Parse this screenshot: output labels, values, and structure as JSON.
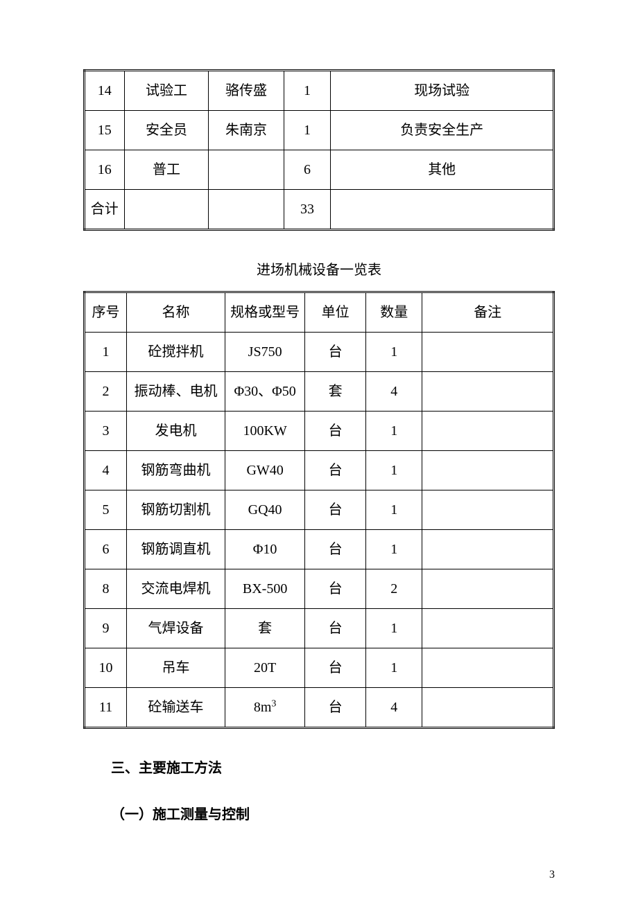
{
  "table1": {
    "columns_css": [
      "t1-c0",
      "t1-c1",
      "t1-c2",
      "t1-c3",
      "t1-c4"
    ],
    "rows": [
      [
        "14",
        "试验工",
        "骆传盛",
        "1",
        "现场试验"
      ],
      [
        "15",
        "安全员",
        "朱南京",
        "1",
        "负责安全生产"
      ],
      [
        "16",
        "普工",
        "",
        "6",
        "其他"
      ],
      [
        "合计",
        "",
        "",
        "33",
        ""
      ]
    ]
  },
  "table2": {
    "caption": "进场机械设备一览表",
    "columns_css": [
      "t2-c0",
      "t2-c1",
      "t2-c2",
      "t2-c3",
      "t2-c4",
      "t2-c5"
    ],
    "headers": [
      "序号",
      "名称",
      "规格或型号",
      "单位",
      "数量",
      "备注"
    ],
    "rows": [
      [
        "1",
        "砼搅拌机",
        "JS750",
        "台",
        "1",
        ""
      ],
      [
        "2",
        "振动棒、电机",
        "Φ30、Φ50",
        "套",
        "4",
        ""
      ],
      [
        "3",
        "发电机",
        "100KW",
        "台",
        "1",
        ""
      ],
      [
        "4",
        "钢筋弯曲机",
        "GW40",
        "台",
        "1",
        ""
      ],
      [
        "5",
        "钢筋切割机",
        "GQ40",
        "台",
        "1",
        ""
      ],
      [
        "6",
        "钢筋调直机",
        "Φ10",
        "台",
        "1",
        ""
      ],
      [
        "8",
        "交流电焊机",
        "BX-500",
        "台",
        "2",
        ""
      ],
      [
        "9",
        "气焊设备",
        "套",
        "台",
        "1",
        ""
      ],
      [
        "10",
        "吊车",
        "20T",
        "台",
        "1",
        ""
      ],
      [
        "11",
        "砼输送车",
        "8m³",
        "台",
        "4",
        ""
      ]
    ]
  },
  "headings": {
    "h1": "三、主要施工方法",
    "h2": "（一）施工测量与控制"
  },
  "page_number": "3",
  "style": {
    "font_family": "SimSun",
    "font_size_pt": 15,
    "text_color": "#000000",
    "background_color": "#ffffff",
    "table_outer_border": "3px double #000000",
    "table_inner_border": "1px solid #000000"
  }
}
